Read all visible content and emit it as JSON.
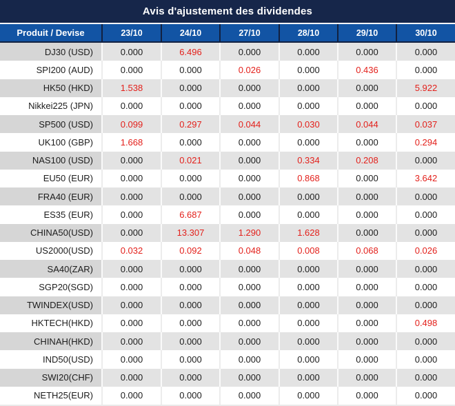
{
  "title": "Avis d'ajustement des dividendes",
  "colors": {
    "title_bg": "#16264a",
    "header_bg": "#1254a4",
    "header_divider": "#122140",
    "header_text": "#ffffff",
    "row_gray": "#e3e3e3",
    "row_gray_product": "#d6d6d6",
    "row_white": "#ffffff",
    "red": "#e3201b",
    "text": "#1c1c1c"
  },
  "table": {
    "product_header": "Produit / Devise",
    "date_headers": [
      "23/10",
      "24/10",
      "27/10",
      "28/10",
      "29/10",
      "30/10"
    ],
    "rows": [
      {
        "product": "DJ30 (USD)",
        "values": [
          "0.000",
          "6.496",
          "0.000",
          "0.000",
          "0.000",
          "0.000"
        ],
        "red": [
          0,
          1,
          0,
          0,
          0,
          0
        ]
      },
      {
        "product": "SPI200 (AUD)",
        "values": [
          "0.000",
          "0.000",
          "0.026",
          "0.000",
          "0.436",
          "0.000"
        ],
        "red": [
          0,
          0,
          1,
          0,
          1,
          0
        ]
      },
      {
        "product": "HK50 (HKD)",
        "values": [
          "1.538",
          "0.000",
          "0.000",
          "0.000",
          "0.000",
          "5.922"
        ],
        "red": [
          1,
          0,
          0,
          0,
          0,
          1
        ]
      },
      {
        "product": "Nikkei225 (JPN)",
        "values": [
          "0.000",
          "0.000",
          "0.000",
          "0.000",
          "0.000",
          "0.000"
        ],
        "red": [
          0,
          0,
          0,
          0,
          0,
          0
        ]
      },
      {
        "product": "SP500 (USD)",
        "values": [
          "0.099",
          "0.297",
          "0.044",
          "0.030",
          "0.044",
          "0.037"
        ],
        "red": [
          1,
          1,
          1,
          1,
          1,
          1
        ]
      },
      {
        "product": "UK100 (GBP)",
        "values": [
          "1.668",
          "0.000",
          "0.000",
          "0.000",
          "0.000",
          "0.294"
        ],
        "red": [
          1,
          0,
          0,
          0,
          0,
          1
        ]
      },
      {
        "product": "NAS100 (USD)",
        "values": [
          "0.000",
          "0.021",
          "0.000",
          "0.334",
          "0.208",
          "0.000"
        ],
        "red": [
          0,
          1,
          0,
          1,
          1,
          0
        ]
      },
      {
        "product": "EU50 (EUR)",
        "values": [
          "0.000",
          "0.000",
          "0.000",
          "0.868",
          "0.000",
          "3.642"
        ],
        "red": [
          0,
          0,
          0,
          1,
          0,
          1
        ]
      },
      {
        "product": "FRA40 (EUR)",
        "values": [
          "0.000",
          "0.000",
          "0.000",
          "0.000",
          "0.000",
          "0.000"
        ],
        "red": [
          0,
          0,
          0,
          0,
          0,
          0
        ]
      },
      {
        "product": "ES35 (EUR)",
        "values": [
          "0.000",
          "6.687",
          "0.000",
          "0.000",
          "0.000",
          "0.000"
        ],
        "red": [
          0,
          1,
          0,
          0,
          0,
          0
        ]
      },
      {
        "product": "CHINA50(USD)",
        "values": [
          "0.000",
          "13.307",
          "1.290",
          "1.628",
          "0.000",
          "0.000"
        ],
        "red": [
          0,
          1,
          1,
          1,
          0,
          0
        ]
      },
      {
        "product": "US2000(USD)",
        "values": [
          "0.032",
          "0.092",
          "0.048",
          "0.008",
          "0.068",
          "0.026"
        ],
        "red": [
          1,
          1,
          1,
          1,
          1,
          1
        ]
      },
      {
        "product": "SA40(ZAR)",
        "values": [
          "0.000",
          "0.000",
          "0.000",
          "0.000",
          "0.000",
          "0.000"
        ],
        "red": [
          0,
          0,
          0,
          0,
          0,
          0
        ]
      },
      {
        "product": "SGP20(SGD)",
        "values": [
          "0.000",
          "0.000",
          "0.000",
          "0.000",
          "0.000",
          "0.000"
        ],
        "red": [
          0,
          0,
          0,
          0,
          0,
          0
        ]
      },
      {
        "product": "TWINDEX(USD)",
        "values": [
          "0.000",
          "0.000",
          "0.000",
          "0.000",
          "0.000",
          "0.000"
        ],
        "red": [
          0,
          0,
          0,
          0,
          0,
          0
        ]
      },
      {
        "product": "HKTECH(HKD)",
        "values": [
          "0.000",
          "0.000",
          "0.000",
          "0.000",
          "0.000",
          "0.498"
        ],
        "red": [
          0,
          0,
          0,
          0,
          0,
          1
        ]
      },
      {
        "product": "CHINAH(HKD)",
        "values": [
          "0.000",
          "0.000",
          "0.000",
          "0.000",
          "0.000",
          "0.000"
        ],
        "red": [
          0,
          0,
          0,
          0,
          0,
          0
        ]
      },
      {
        "product": "IND50(USD)",
        "values": [
          "0.000",
          "0.000",
          "0.000",
          "0.000",
          "0.000",
          "0.000"
        ],
        "red": [
          0,
          0,
          0,
          0,
          0,
          0
        ]
      },
      {
        "product": "SWI20(CHF)",
        "values": [
          "0.000",
          "0.000",
          "0.000",
          "0.000",
          "0.000",
          "0.000"
        ],
        "red": [
          0,
          0,
          0,
          0,
          0,
          0
        ]
      },
      {
        "product": "NETH25(EUR)",
        "values": [
          "0.000",
          "0.000",
          "0.000",
          "0.000",
          "0.000",
          "0.000"
        ],
        "red": [
          0,
          0,
          0,
          0,
          0,
          0
        ]
      }
    ]
  }
}
